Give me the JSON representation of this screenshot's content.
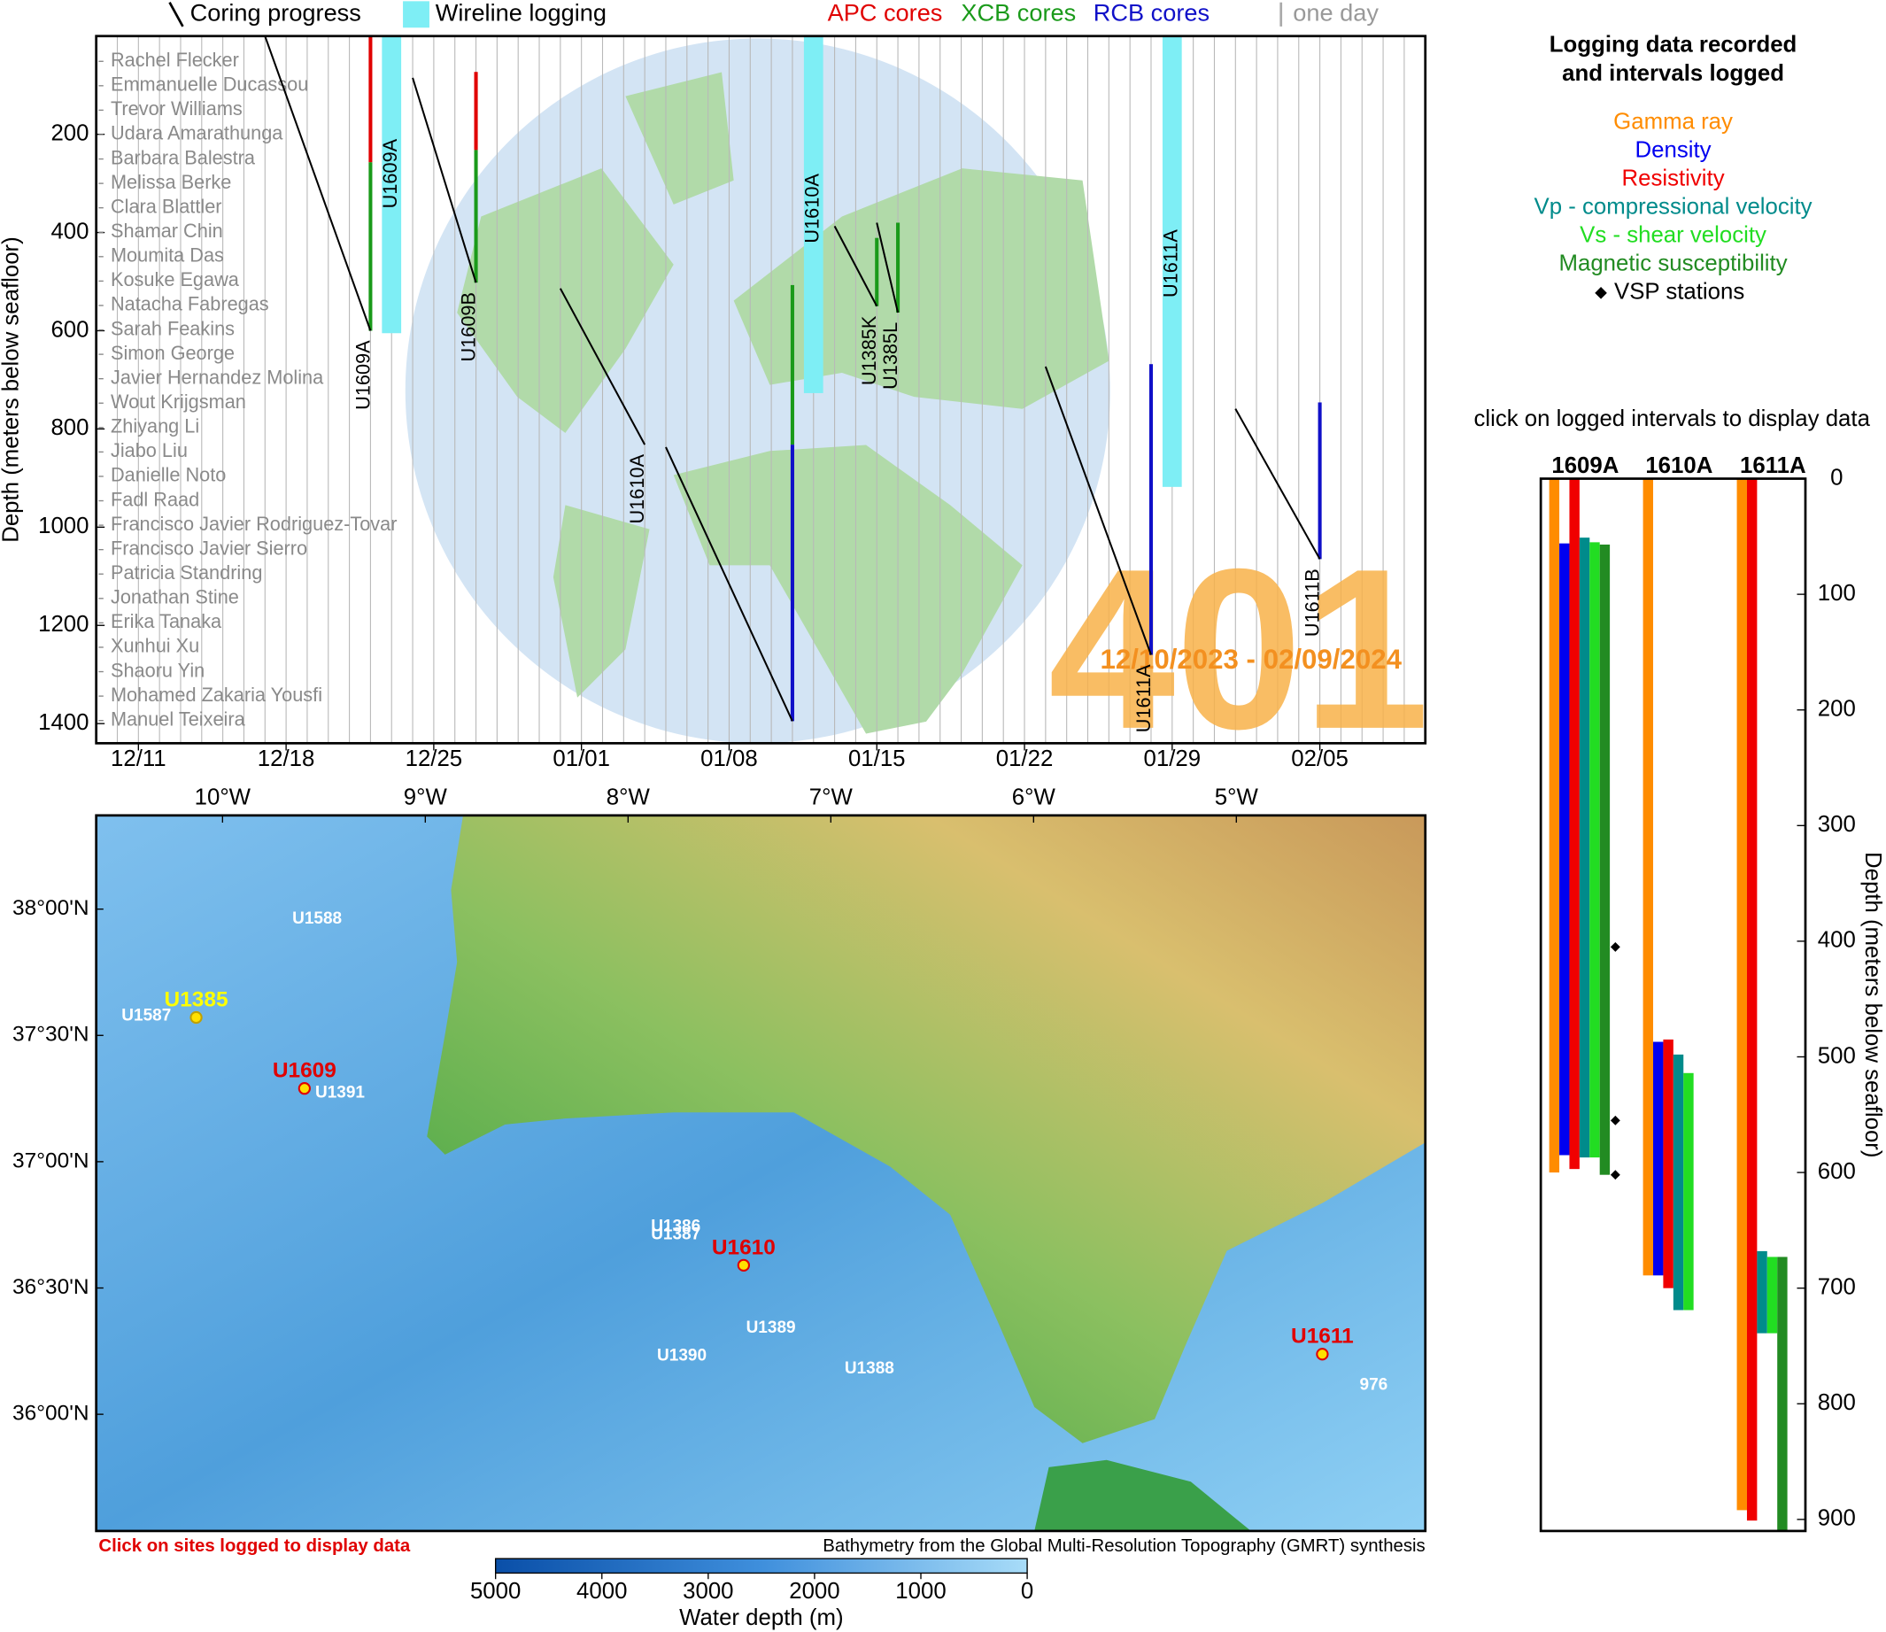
{
  "chart_data": [
    {
      "type": "timeline",
      "ylabel": "Depth (meters below seafloor)",
      "xlim": [
        "12/09",
        "02/10"
      ],
      "xticks": [
        "12/11",
        "12/18",
        "12/25",
        "01/01",
        "01/08",
        "01/15",
        "01/22",
        "01/29",
        "02/05"
      ],
      "ylim": [
        0,
        1440
      ],
      "yticks": [
        200,
        400,
        600,
        800,
        1000,
        1200,
        1400
      ],
      "day_grid": true,
      "expedition": "401",
      "dates": "12/10/2023 - 02/09/2024",
      "legend": {
        "coring": "Coring progress",
        "wireline": {
          "name": "Wireline logging",
          "color": "#7eeef5"
        },
        "day": "one day"
      },
      "scientists": [
        "Rachel Flecker",
        "Emmanuelle Ducassou",
        "Trevor Williams",
        "Udara Amarathunga",
        "Barbara Balestra",
        "Melissa Berke",
        "Clara Blattler",
        "Shamar Chin",
        "Moumita Das",
        "Kosuke Egawa",
        "Natacha Fabregas",
        "Sarah Feakins",
        "Simon George",
        "Javier Hernandez Molina",
        "Wout Krijgsman",
        "Zhiyang Li",
        "Jiabo Liu",
        "Danielle Noto",
        "Fadl Raad",
        "Francisco Javier Rodriguez-Tovar",
        "Francisco Javier Sierro",
        "Patricia Standring",
        "Jonathan Stine",
        "Erika Tanaka",
        "Xunhui Xu",
        "Shaoru Yin",
        "Mohamed Zakaria Yousfi",
        "Manuel Teixeira"
      ],
      "holes": [
        {
          "name": "U1609A",
          "x": [
            "12/17",
            "12/22"
          ],
          "depth": [
            0,
            600
          ]
        },
        {
          "name": "U1609B",
          "x": [
            "12/24",
            "12/27"
          ],
          "depth": [
            85,
            502
          ]
        },
        {
          "name": "U1610A",
          "x": [
            "12/31",
            "01/04",
            null,
            "01/05",
            "01/11"
          ],
          "depth": [
            514,
            832,
            null,
            837,
            1395
          ]
        },
        {
          "name": "U1385K",
          "x": [
            "01/13",
            "01/15"
          ],
          "depth": [
            387,
            550
          ]
        },
        {
          "name": "U1385L",
          "x": [
            "01/15",
            "01/16"
          ],
          "depth": [
            380,
            563
          ]
        },
        {
          "name": "U1611A",
          "x": [
            "01/23",
            "01/28"
          ],
          "depth": [
            673,
            1260
          ]
        },
        {
          "name": "U1611B",
          "x": [
            "02/01",
            "02/05"
          ],
          "depth": [
            759,
            1065
          ]
        }
      ],
      "wireline": [
        {
          "hole": "U1609A",
          "x": "12/23",
          "depth": [
            0,
            605
          ]
        },
        {
          "hole": "U1610A",
          "x": "01/12",
          "depth": [
            0,
            727
          ]
        },
        {
          "hole": "U1611A",
          "x": "01/29",
          "depth": [
            0,
            918
          ]
        }
      ],
      "core_series": [
        {
          "name": "APC cores",
          "color": "#e00000",
          "x": [
            "12/22",
            "12/27"
          ],
          "top": [
            0,
            73
          ],
          "bottom": [
            257,
            232
          ]
        },
        {
          "name": "XCB cores",
          "color": "#1a9a1a",
          "x": [
            "12/22",
            "12/27",
            "01/11",
            "01/15",
            "01/16"
          ],
          "top": [
            257,
            232,
            507,
            411,
            380
          ],
          "bottom": [
            600,
            502,
            832,
            550,
            563
          ]
        },
        {
          "name": "RCB cores",
          "color": "#1010c8",
          "x": [
            "01/11",
            "01/28",
            "02/05"
          ],
          "top": [
            832,
            668,
            746
          ],
          "bottom": [
            1395,
            1260,
            1065
          ]
        }
      ]
    },
    {
      "type": "intervals",
      "title_lines": [
        "Logging data recorded",
        "and intervals logged"
      ],
      "note": "click on logged intervals to display data",
      "ylabel": "Depth (meters below seafloor)",
      "holes": [
        "1609A",
        "1610A",
        "1611A"
      ],
      "ylim": [
        0,
        910
      ],
      "yticks": [
        0,
        100,
        200,
        300,
        400,
        500,
        600,
        700,
        800,
        900
      ],
      "series": [
        {
          "name": "Gamma ray",
          "color": "#ff8c00",
          "top": [
            0,
            0,
            0
          ],
          "bottom": [
            600,
            689,
            892
          ]
        },
        {
          "name": "Density",
          "color": "#0000f0",
          "top": [
            56,
            487,
            null
          ],
          "bottom": [
            585,
            689,
            null
          ]
        },
        {
          "name": "Resistivity",
          "color": "#f00000",
          "top": [
            0,
            485,
            0
          ],
          "bottom": [
            597,
            700,
            901
          ]
        },
        {
          "name": "Vp - compressional velocity",
          "color": "#008b8b",
          "top": [
            51,
            498,
            668
          ],
          "bottom": [
            587,
            719,
            739
          ]
        },
        {
          "name": "Vs - shear velocity",
          "color": "#22dd22",
          "top": [
            55,
            514,
            673
          ],
          "bottom": [
            587,
            719,
            739
          ]
        },
        {
          "name": "Magnetic susceptibility",
          "color": "#228b22",
          "top": [
            57,
            null,
            673
          ],
          "bottom": [
            602,
            null,
            910
          ]
        }
      ],
      "vsp": {
        "name": "VSP stations",
        "values": [
          405,
          555,
          602
        ]
      }
    }
  ],
  "map": {
    "xlim": [
      -10.623,
      -4.068
    ],
    "ylim": [
      35.538,
      38.371
    ],
    "xticks": [
      {
        "value": -10,
        "label": "10°W"
      },
      {
        "value": -9,
        "label": "9°W"
      },
      {
        "value": -8,
        "label": "8°W"
      },
      {
        "value": -7,
        "label": "7°W"
      },
      {
        "value": -6,
        "label": "6°W"
      },
      {
        "value": -5,
        "label": "5°W"
      }
    ],
    "yticks": [
      {
        "value": 38,
        "label": "38°00'N"
      },
      {
        "value": 37.5,
        "label": "37°30'N"
      },
      {
        "value": 37,
        "label": "37°00'N"
      },
      {
        "value": 36.5,
        "label": "36°30'N"
      },
      {
        "value": 36,
        "label": "36°00'N"
      }
    ],
    "sites": [
      {
        "name": "U1588",
        "lon": -9.656,
        "lat": 37.961,
        "color": "#ffffff",
        "dot": false
      },
      {
        "name": "U1385",
        "lon": -10.13,
        "lat": 37.571,
        "color": "#ffff00",
        "dot": true
      },
      {
        "name": "U1587",
        "lon": -10.498,
        "lat": 37.576,
        "color": "#ffffff",
        "dot": false
      },
      {
        "name": "U1609",
        "lon": -9.596,
        "lat": 37.29,
        "color": "#e00000",
        "dot": true
      },
      {
        "name": "U1391",
        "lon": -9.543,
        "lat": 37.271,
        "color": "#ffffff",
        "dot": false
      },
      {
        "name": "U1386",
        "lon": -7.887,
        "lat": 36.742,
        "color": "#ffffff",
        "dot": false
      },
      {
        "name": "U1387",
        "lon": -7.887,
        "lat": 36.71,
        "color": "#ffffff",
        "dot": false
      },
      {
        "name": "U1610",
        "lon": -7.43,
        "lat": 36.59,
        "color": "#e00000",
        "dot": true
      },
      {
        "name": "U1389",
        "lon": -7.418,
        "lat": 36.34,
        "color": "#ffffff",
        "dot": false
      },
      {
        "name": "U1390",
        "lon": -7.857,
        "lat": 36.23,
        "color": "#ffffff",
        "dot": false
      },
      {
        "name": "U1388",
        "lon": -6.932,
        "lat": 36.18,
        "color": "#ffffff",
        "dot": false
      },
      {
        "name": "U1611",
        "lon": -4.576,
        "lat": 36.238,
        "color": "#e00000",
        "dot": true
      },
      {
        "name": "976",
        "lon": -4.392,
        "lat": 36.115,
        "color": "#ffffff",
        "dot": false
      }
    ],
    "note": "Click on sites logged to display data",
    "credit": "Bathymetry from the Global Multi-Resolution Topography (GMRT) synthesis",
    "colorbar": {
      "label": "Water depth (m)",
      "lim": [
        5000,
        0
      ],
      "ticks": [
        5000,
        4000,
        3000,
        2000,
        1000,
        0
      ]
    }
  }
}
